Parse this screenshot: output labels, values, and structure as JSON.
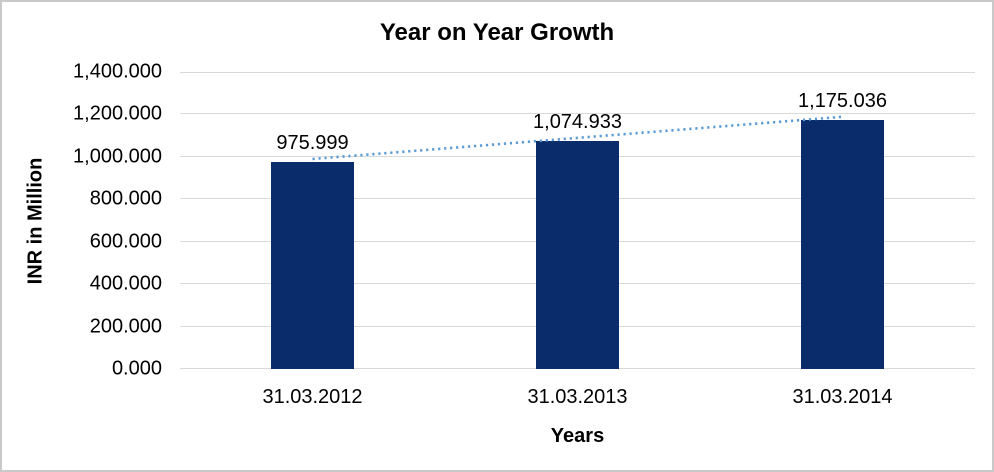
{
  "chart_data": {
    "type": "bar",
    "title": "Year on Year Growth",
    "xlabel": "Years",
    "ylabel": "INR in Million",
    "categories": [
      "31.03.2012",
      "31.03.2013",
      "31.03.2014"
    ],
    "values": [
      975.999,
      1074.933,
      1175.036
    ],
    "data_labels": [
      "975.999",
      "1,074.933",
      "1,175.036"
    ],
    "ylim": [
      0,
      1400
    ],
    "y_ticks": [
      {
        "value": 0,
        "label": "0.000"
      },
      {
        "value": 200,
        "label": "200.000"
      },
      {
        "value": 400,
        "label": "400.000"
      },
      {
        "value": 600,
        "label": "600.000"
      },
      {
        "value": 800,
        "label": "800.000"
      },
      {
        "value": 1000,
        "label": "1,000.000"
      },
      {
        "value": 1200,
        "label": "1,200.000"
      },
      {
        "value": 1400,
        "label": "1,400.000"
      }
    ],
    "grid": true,
    "legend_position": "none",
    "trendline": {
      "type": "linear",
      "style": "dotted"
    },
    "colors": {
      "bar": "#0b2c6b",
      "trendline": "#5b9bd5",
      "gridline": "#d9d9d9",
      "text": "#000000",
      "frame": "#c9c9c9"
    }
  }
}
